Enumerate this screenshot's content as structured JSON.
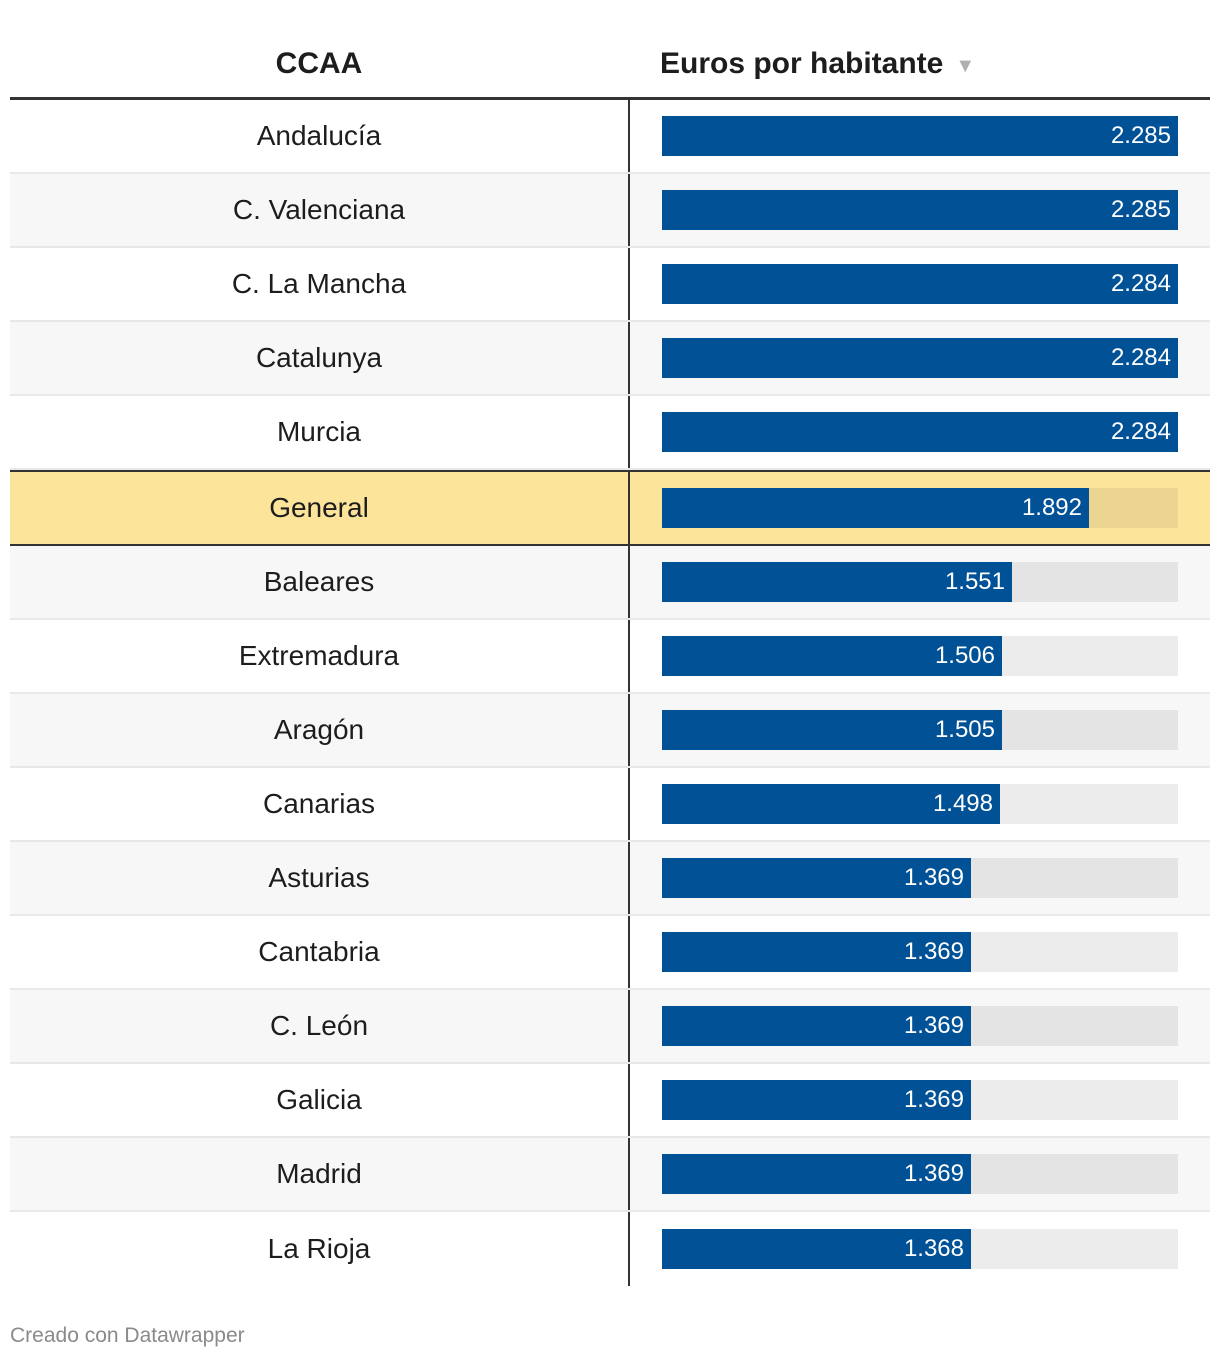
{
  "chart_data": {
    "type": "table",
    "columns": [
      "CCAA",
      "Euros por habitante"
    ],
    "sort_indicator": "▼",
    "xlim": [
      0,
      2285
    ],
    "rows": [
      {
        "name": "Andalucía",
        "value": 2285,
        "label": "2.285"
      },
      {
        "name": "C. Valenciana",
        "value": 2285,
        "label": "2.285"
      },
      {
        "name": "C. La Mancha",
        "value": 2284,
        "label": "2.284"
      },
      {
        "name": "Catalunya",
        "value": 2284,
        "label": "2.284"
      },
      {
        "name": "Murcia",
        "value": 2284,
        "label": "2.284"
      },
      {
        "name": "General",
        "value": 1892,
        "label": "1.892",
        "highlight": true
      },
      {
        "name": "Baleares",
        "value": 1551,
        "label": "1.551"
      },
      {
        "name": "Extremadura",
        "value": 1506,
        "label": "1.506"
      },
      {
        "name": "Aragón",
        "value": 1505,
        "label": "1.505"
      },
      {
        "name": "Canarias",
        "value": 1498,
        "label": "1.498"
      },
      {
        "name": "Asturias",
        "value": 1369,
        "label": "1.369"
      },
      {
        "name": "Cantabria",
        "value": 1369,
        "label": "1.369"
      },
      {
        "name": "C. León",
        "value": 1369,
        "label": "1.369"
      },
      {
        "name": "Galicia",
        "value": 1369,
        "label": "1.369"
      },
      {
        "name": "Madrid",
        "value": 1369,
        "label": "1.369"
      },
      {
        "name": "La Rioja",
        "value": 1368,
        "label": "1.368"
      }
    ]
  },
  "colors": {
    "bar": "#005196",
    "highlight_row": "#fde49b"
  },
  "footer": {
    "credit": "Creado con Datawrapper"
  }
}
